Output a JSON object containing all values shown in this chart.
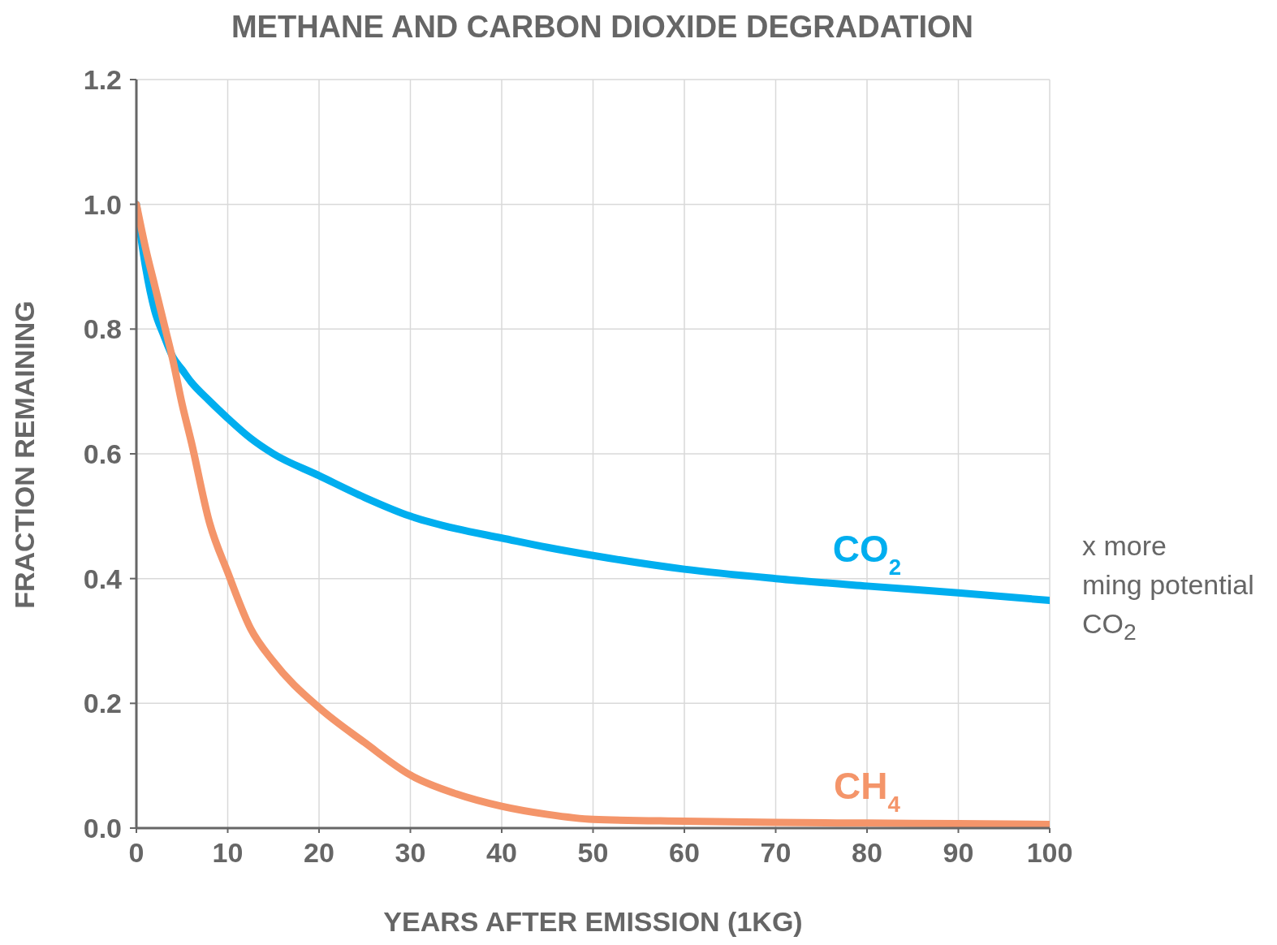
{
  "chart_data": {
    "type": "line",
    "title": "METHANE AND CARBON DIOXIDE DEGRADATION",
    "xlabel": "YEARS AFTER EMISSION (1KG)",
    "ylabel": "FRACTION REMAINING",
    "x": [
      0,
      1,
      2,
      3,
      4,
      5,
      6,
      8,
      10,
      12.5,
      15,
      20,
      25,
      30,
      35,
      40,
      45,
      50,
      60,
      70,
      80,
      90,
      100
    ],
    "series": [
      {
        "name": "CO$_{2}$",
        "color": "#00aeef",
        "values": [
          1.0,
          0.9,
          0.83,
          0.79,
          0.755,
          0.735,
          0.715,
          0.685,
          0.657,
          0.625,
          0.6,
          0.565,
          0.53,
          0.5,
          0.48,
          0.465,
          0.45,
          0.437,
          0.415,
          0.4,
          0.388,
          0.377,
          0.365
        ]
      },
      {
        "name": "CH$_{4}$",
        "color": "#f4956a",
        "values": [
          1.0,
          0.93,
          0.87,
          0.81,
          0.75,
          0.68,
          0.62,
          0.49,
          0.41,
          0.32,
          0.267,
          0.193,
          0.137,
          0.085,
          0.055,
          0.035,
          0.022,
          0.014,
          0.011,
          0.009,
          0.008,
          0.007,
          0.006
        ]
      }
    ],
    "xlim": [
      0,
      100
    ],
    "xticks": [
      0,
      10,
      20,
      30,
      40,
      50,
      60,
      70,
      80,
      90,
      100
    ],
    "ylim": [
      0,
      1.2
    ],
    "yticks": [
      {
        "value": 0,
        "label": "0.0"
      },
      {
        "value": 0.2,
        "label": "0.2"
      },
      {
        "value": 0.4,
        "label": "0.4"
      },
      {
        "value": 0.6,
        "label": "0.6"
      },
      {
        "value": 0.8,
        "label": "0.8"
      },
      {
        "value": 1,
        "label": "1.0"
      },
      {
        "value": 1.2,
        "label": "1.2"
      }
    ],
    "grid": true,
    "annotations": [
      "x more",
      "ming potential",
      "CO$_{2}$"
    ]
  }
}
